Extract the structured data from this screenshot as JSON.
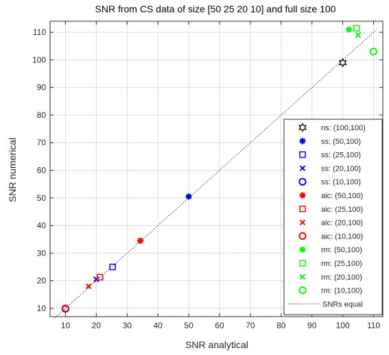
{
  "chart_data": {
    "type": "scatter",
    "title": "SNR from CS data of size [50 25 20 10] and full size 100",
    "xlabel": "SNR analytical",
    "ylabel": "SNR numerical",
    "xlim": [
      5,
      113
    ],
    "ylim": [
      7,
      114
    ],
    "xticks": [
      10,
      20,
      30,
      40,
      50,
      60,
      70,
      80,
      90,
      100,
      110
    ],
    "yticks": [
      10,
      20,
      30,
      40,
      50,
      60,
      70,
      80,
      90,
      100,
      110
    ],
    "grid": true,
    "legend_position": "bottom-right",
    "colors": {
      "ns": "#000000",
      "ss": "#0000ff",
      "aic": "#ff0000",
      "rm": "#00ff00",
      "reference_line": "#000000",
      "grid": "#dcdcdc",
      "axes": "#262626"
    },
    "series": [
      {
        "name": "ns: (100,100)",
        "marker": "hexagram",
        "color": "#000000",
        "x": [
          100
        ],
        "y": [
          99
        ]
      },
      {
        "name": "ss: (50,100)",
        "marker": "asterisk",
        "color": "#0000ff",
        "x": [
          50
        ],
        "y": [
          50.5
        ]
      },
      {
        "name": "ss: (25,100)",
        "marker": "square",
        "color": "#0000ff",
        "x": [
          25.3
        ],
        "y": [
          25
        ]
      },
      {
        "name": "ss: (20,100)",
        "marker": "x",
        "color": "#0000ff",
        "x": [
          20
        ],
        "y": [
          20.5
        ]
      },
      {
        "name": "ss: (10,100)",
        "marker": "circle",
        "color": "#0000ff",
        "x": [
          10
        ],
        "y": [
          9.8
        ]
      },
      {
        "name": "aic: (50,100)",
        "marker": "asterisk",
        "color": "#ff0000",
        "x": [
          34.3
        ],
        "y": [
          34.5
        ]
      },
      {
        "name": "aic: (25,100)",
        "marker": "square",
        "color": "#ff0000",
        "x": [
          21.2
        ],
        "y": [
          21.3
        ]
      },
      {
        "name": "aic: (20,100)",
        "marker": "x",
        "color": "#ff0000",
        "x": [
          17.5
        ],
        "y": [
          18
        ]
      },
      {
        "name": "aic: (10,100)",
        "marker": "circle",
        "color": "#ff0000",
        "x": [
          10
        ],
        "y": [
          10
        ]
      },
      {
        "name": "rm: (50,100)",
        "marker": "asterisk",
        "color": "#00ff00",
        "x": [
          102
        ],
        "y": [
          111
        ]
      },
      {
        "name": "rm: (25,100)",
        "marker": "square",
        "color": "#00ff00",
        "x": [
          104.5
        ],
        "y": [
          111.5
        ]
      },
      {
        "name": "rm: (20,100)",
        "marker": "x",
        "color": "#00ff00",
        "x": [
          105
        ],
        "y": [
          109
        ]
      },
      {
        "name": "rm: (10,100)",
        "marker": "circle",
        "color": "#00ff00",
        "x": [
          110
        ],
        "y": [
          103
        ]
      }
    ],
    "reference_line": {
      "name": "SNRs equal",
      "style": "dotted",
      "color": "#000000",
      "from": [
        6.5,
        6.5
      ],
      "to": [
        111,
        111
      ]
    }
  }
}
